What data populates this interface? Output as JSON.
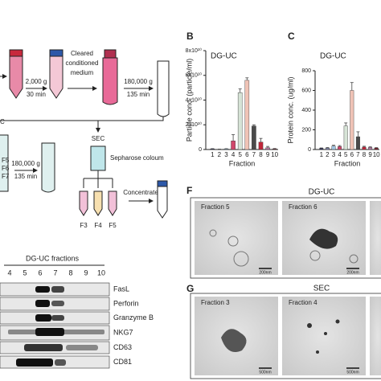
{
  "workflow": {
    "dg_uc_fragment": "C",
    "spin1_speed": "2,000 g",
    "spin1_time": "30 min",
    "cleared_lines": [
      "Cleared",
      "conditioned",
      "medium"
    ],
    "spin2_speed": "180,000 g",
    "spin2_time": "135 min",
    "sec": "SEC",
    "column": "Sepharose coloum",
    "sec_fractions": [
      "F3",
      "F4",
      "F5"
    ],
    "concentrate": "Concentrate",
    "dg_fractions": [
      "F5",
      "F6",
      "F7"
    ],
    "spin3_speed": "180,000 g",
    "spin3_time": "135 min"
  },
  "chart_data": [
    {
      "type": "bar",
      "panel": "B",
      "title": "DG-UC",
      "ylabel": "Particle conc. (particle/ml)",
      "xlabel": "Fraction",
      "categories": [
        "1",
        "2",
        "3",
        "4",
        "5",
        "6",
        "7",
        "8",
        "9",
        "10"
      ],
      "values": [
        500000000,
        200000000,
        500000000,
        7000000000,
        46000000000,
        56000000000,
        19000000000,
        6000000000,
        1500000000,
        500000000
      ],
      "errors": [
        200000000,
        100000000,
        200000000,
        5000000000,
        3000000000,
        2000000000,
        1000000000,
        3000000000,
        1000000000,
        300000000
      ],
      "colors": [
        "#2b2d5c",
        "#8a8fb8",
        "#9fc3e0",
        "#d1476b",
        "#d6e3d6",
        "#f0c3b6",
        "#4a4a4a",
        "#c0263a",
        "#b07aa0",
        "#7a1626"
      ],
      "ylim": [
        0,
        80000000000
      ],
      "yticks": [
        0,
        {
          "value": 20000000000,
          "label": "2x10¹⁰"
        },
        {
          "value": 40000000000,
          "label": "4x10¹⁰"
        },
        {
          "value": 60000000000,
          "label": "6x10¹⁰"
        },
        {
          "value": 80000000000,
          "label": "8x10¹⁰"
        }
      ]
    },
    {
      "type": "bar",
      "panel": "C",
      "title": "DG-UC",
      "ylabel": "Protein conc. (ug/ml)",
      "xlabel": "Fraction",
      "categories": [
        "1",
        "2",
        "3",
        "4",
        "5",
        "6",
        "7",
        "8",
        "9",
        "10"
      ],
      "values": [
        12,
        15,
        35,
        30,
        240,
        600,
        130,
        25,
        22,
        15
      ],
      "errors": [
        4,
        5,
        8,
        10,
        30,
        80,
        50,
        8,
        5,
        4
      ],
      "colors": [
        "#2b2d5c",
        "#8a8fb8",
        "#9fc3e0",
        "#d1476b",
        "#d6e3d6",
        "#f0c3b6",
        "#4a4a4a",
        "#c0263a",
        "#b07aa0",
        "#7a1626"
      ],
      "ylim": [
        0,
        800
      ],
      "yticks": [
        0,
        200,
        400,
        600,
        800
      ]
    }
  ],
  "western_blot": {
    "title": "DG-UC fractions",
    "lanes": [
      "4",
      "5",
      "6",
      "7",
      "8",
      "9",
      "10"
    ],
    "proteins": [
      "FasL",
      "Perforin",
      "Granzyme B",
      "NKG7",
      "CD63",
      "CD81"
    ]
  },
  "tem_f": {
    "panel": "F",
    "title": "DG-UC",
    "images": [
      {
        "label": "Fraction 5",
        "scale": "200nm"
      },
      {
        "label": "Fraction 6",
        "scale": "200nm"
      }
    ]
  },
  "tem_g": {
    "panel": "G",
    "title": "SEC",
    "images": [
      {
        "label": "Fraction 3",
        "scale": "500nm"
      },
      {
        "label": "Fraction 4",
        "scale": "500nm"
      }
    ]
  }
}
